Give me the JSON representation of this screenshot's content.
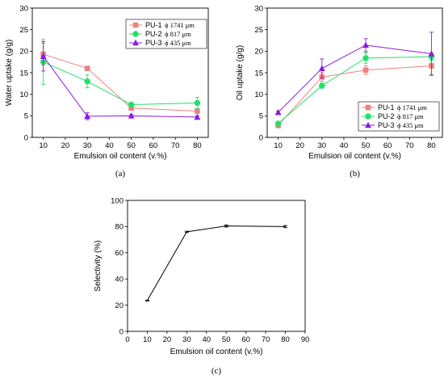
{
  "chart_data": [
    {
      "type": "line",
      "panel_label": "(a)",
      "xlabel": "Emulsion oil content (v.%)",
      "ylabel": "Water uptake (g/g)",
      "xlim": [
        5,
        85
      ],
      "ylim": [
        0,
        30
      ],
      "xticks": [
        10,
        20,
        30,
        40,
        50,
        60,
        70,
        80
      ],
      "yticks": [
        0,
        5,
        10,
        15,
        20,
        25,
        30
      ],
      "legend_position": "top-right",
      "x": [
        10,
        30,
        50,
        80
      ],
      "series": [
        {
          "name": "PU-1",
          "name_suffix": "ϕ 1741 μm",
          "color": "#f08080",
          "marker": "square",
          "values": [
            19.3,
            16.0,
            6.8,
            6.1
          ],
          "errors": [
            2.5,
            0.3,
            0.5,
            0.4
          ]
        },
        {
          "name": "PU-2",
          "name_suffix": "ϕ 817 μm",
          "color": "#22e06a",
          "marker": "circle",
          "values": [
            17.5,
            13.0,
            7.6,
            8.0
          ],
          "errors": [
            5.2,
            1.5,
            0.4,
            1.3
          ]
        },
        {
          "name": "PU-3",
          "name_suffix": "ϕ 435 μm",
          "color": "#8a1be0",
          "marker": "triangle",
          "values": [
            18.8,
            4.9,
            5.0,
            4.7
          ],
          "errors": [
            3.4,
            0.8,
            0.3,
            0.3
          ]
        }
      ]
    },
    {
      "type": "line",
      "panel_label": "(b)",
      "xlabel": "Emulsion oil content (v.%)",
      "ylabel": "Oil uptake (g/g)",
      "xlim": [
        5,
        85
      ],
      "ylim": [
        0,
        30
      ],
      "xticks": [
        10,
        20,
        30,
        40,
        50,
        60,
        70,
        80
      ],
      "yticks": [
        0,
        5,
        10,
        15,
        20,
        25,
        30
      ],
      "legend_position": "bottom-right",
      "x": [
        10,
        30,
        50,
        80
      ],
      "series": [
        {
          "name": "PU-1",
          "name_suffix": "ϕ 1741 μm",
          "color": "#f08080",
          "marker": "square",
          "values": [
            2.8,
            14.0,
            15.6,
            16.6
          ],
          "errors": [
            0.6,
            1.0,
            1.0,
            2.0
          ]
        },
        {
          "name": "PU-2",
          "name_suffix": "ϕ 817 μm",
          "color": "#22e06a",
          "marker": "circle",
          "values": [
            3.2,
            12.0,
            18.4,
            18.7
          ],
          "errors": [
            0.5,
            0.6,
            1.2,
            0.8
          ]
        },
        {
          "name": "PU-3",
          "name_suffix": "ϕ 435 μm",
          "color": "#8a1be0",
          "marker": "triangle",
          "values": [
            5.8,
            16.0,
            21.4,
            19.4
          ],
          "errors": [
            0.3,
            2.2,
            1.5,
            5.0
          ]
        }
      ]
    },
    {
      "type": "line",
      "panel_label": "(c)",
      "xlabel": "Emulsion oil content (v.%)",
      "ylabel": "Selectivity (%)",
      "xlim": [
        0,
        90
      ],
      "ylim": [
        0,
        100
      ],
      "xticks": [
        0,
        10,
        20,
        30,
        40,
        50,
        60,
        70,
        80,
        90
      ],
      "yticks": [
        0,
        20,
        40,
        60,
        80,
        100
      ],
      "x": [
        10,
        30,
        50,
        80
      ],
      "series": [
        {
          "color": "#000000",
          "marker": "none",
          "values": [
            23.5,
            76.0,
            80.5,
            80.0
          ],
          "errors": [
            0.3,
            0.5,
            0.8,
            0.8
          ]
        }
      ]
    }
  ]
}
